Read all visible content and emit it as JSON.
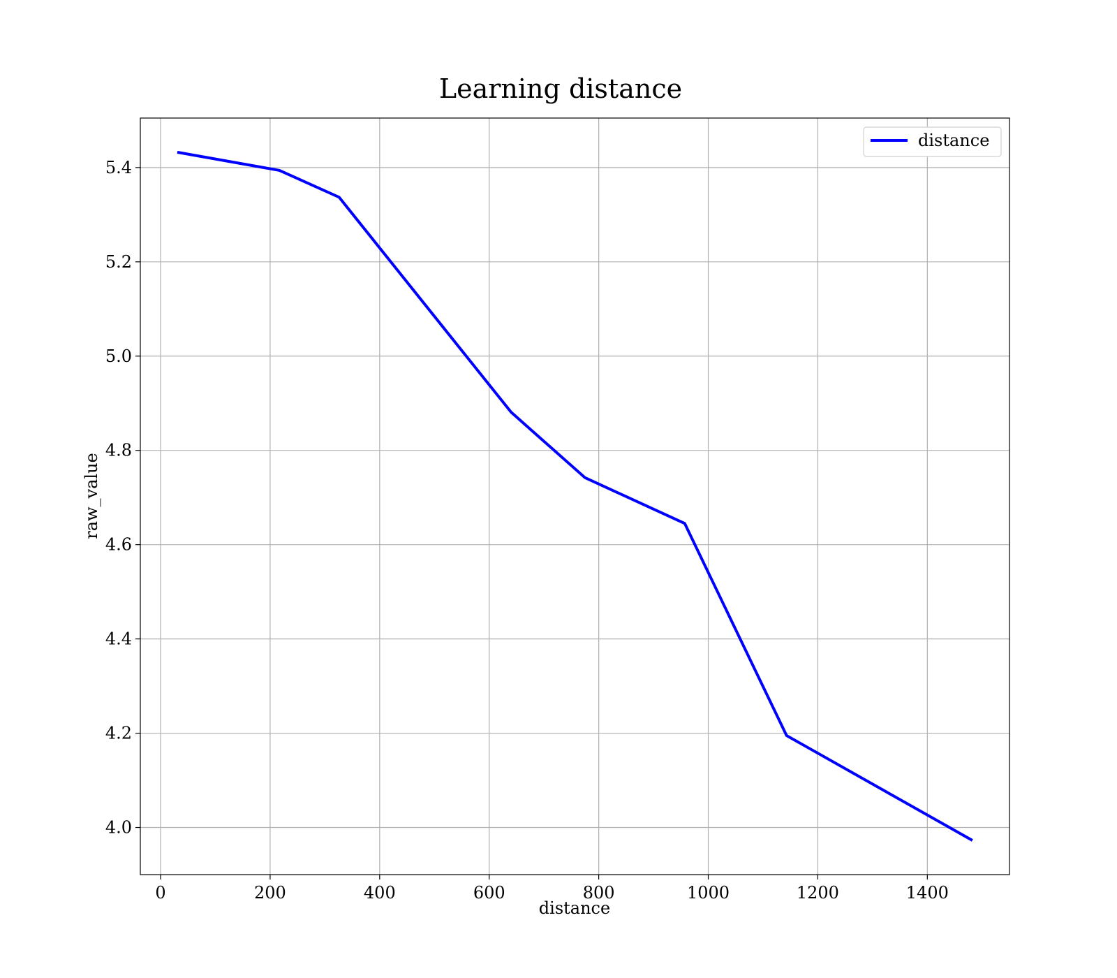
{
  "chart_data": {
    "type": "line",
    "title": "Learning distance",
    "xlabel": "distance",
    "ylabel": "raw_value",
    "xlim": [
      -37,
      1550
    ],
    "ylim": [
      3.9,
      5.505
    ],
    "xticks": [
      0,
      200,
      400,
      600,
      800,
      1000,
      1200,
      1400
    ],
    "xtick_labels": [
      "0",
      "200",
      "400",
      "600",
      "800",
      "1000",
      "1200",
      "1400"
    ],
    "yticks": [
      4.0,
      4.2,
      4.4,
      4.6,
      4.8,
      5.0,
      5.2,
      5.4
    ],
    "ytick_labels": [
      "4.0",
      "4.2",
      "4.4",
      "4.6",
      "4.8",
      "5.0",
      "5.2",
      "5.4"
    ],
    "grid": true,
    "legend_position": "top-right",
    "series": [
      {
        "name": "distance",
        "color": "#0000ff",
        "x": [
          33,
          217,
          326,
          640,
          775,
          957,
          1143,
          1480
        ],
        "y": [
          5.432,
          5.394,
          5.337,
          4.881,
          4.742,
          4.645,
          4.195,
          3.974
        ]
      }
    ]
  }
}
